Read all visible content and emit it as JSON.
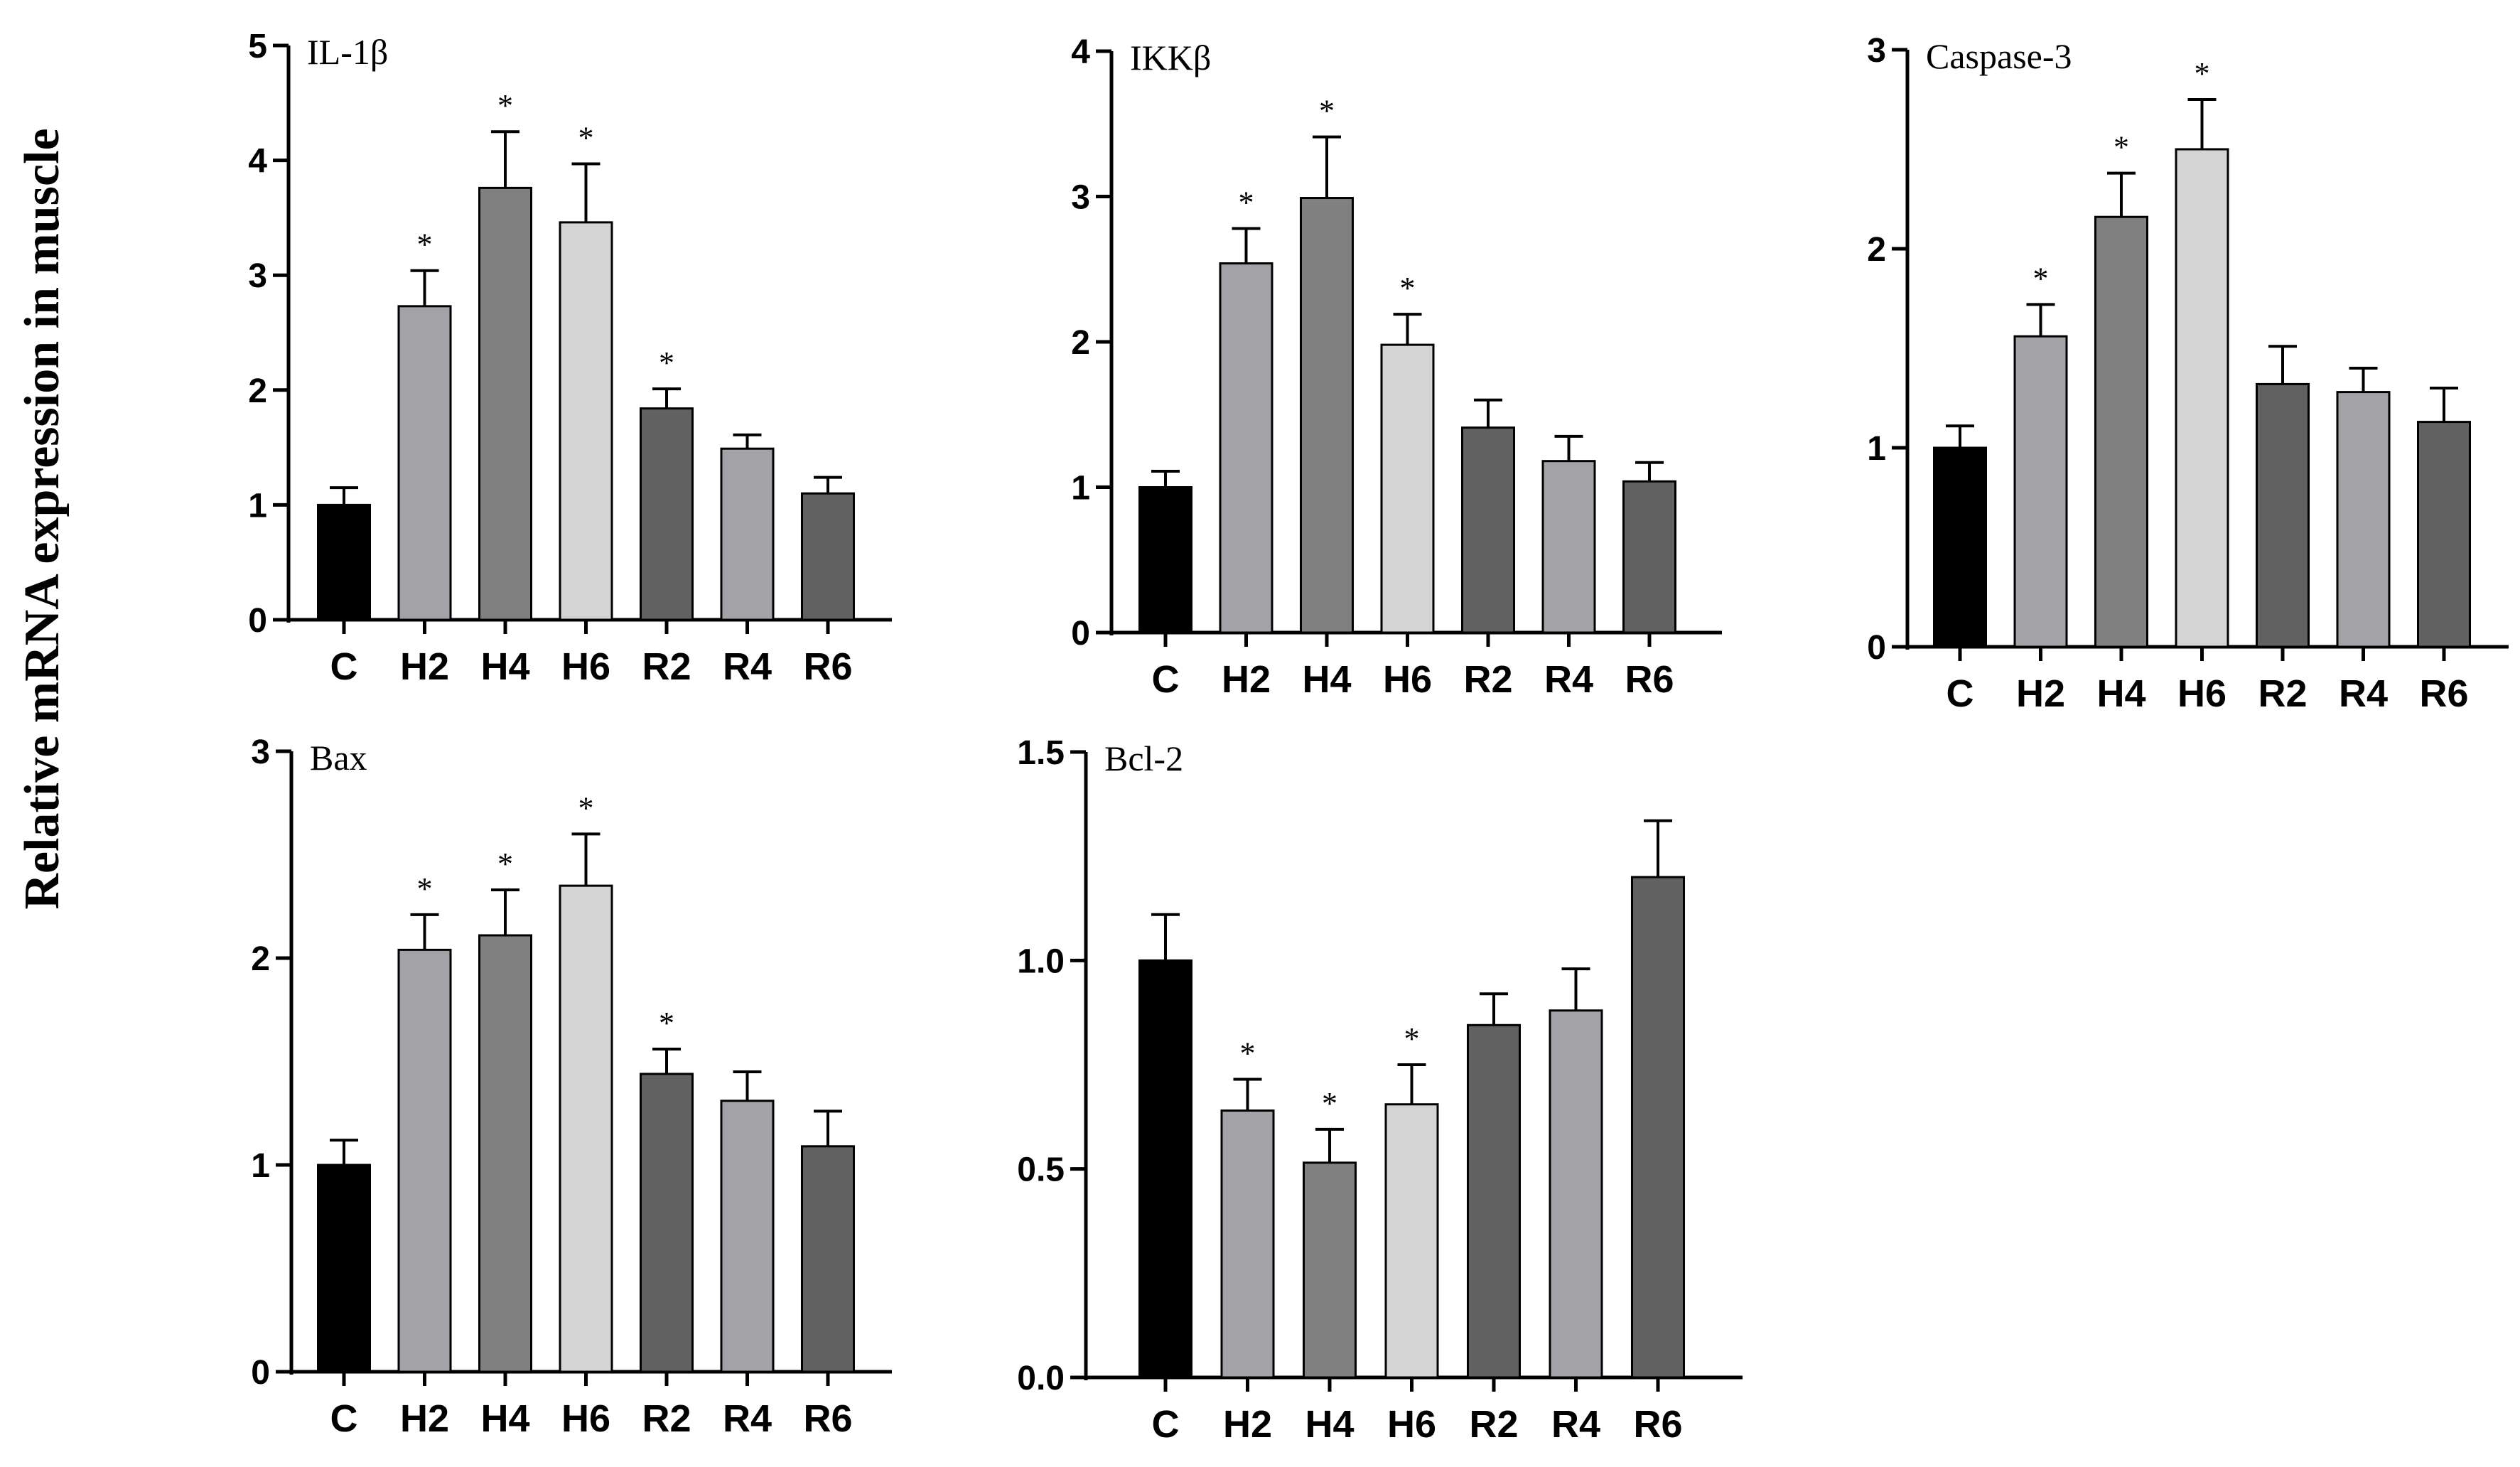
{
  "chart_data": {
    "type": "bar",
    "ylabel": "Relative mRNA expression in muscle",
    "categories": [
      "C",
      "H2",
      "H4",
      "H6",
      "R2",
      "R4",
      "R6"
    ],
    "bar_colors": [
      "#000000",
      "#a3a3a7",
      "#808080",
      "#d4d4d4",
      "#616161",
      "#a3a3a7",
      "#616161"
    ],
    "panels": [
      {
        "title": "IL-1β",
        "ylim": [
          0,
          5
        ],
        "yticks": [
          "0",
          "1",
          "2",
          "3",
          "4",
          "5"
        ],
        "ytick_values": [
          0,
          1,
          2,
          3,
          4,
          5
        ],
        "values": [
          1.0,
          2.73,
          3.76,
          3.46,
          1.84,
          1.49,
          1.1
        ],
        "errors": [
          0.15,
          0.31,
          0.49,
          0.51,
          0.17,
          0.12,
          0.14
        ],
        "significant": [
          false,
          true,
          true,
          true,
          true,
          false,
          false
        ],
        "marker": "*"
      },
      {
        "title": "IKKβ",
        "ylim": [
          0,
          4
        ],
        "yticks": [
          "0",
          "1",
          "2",
          "3",
          "4"
        ],
        "ytick_values": [
          0,
          1,
          2,
          3,
          4
        ],
        "values": [
          1.0,
          2.54,
          2.99,
          1.98,
          1.41,
          1.18,
          1.04
        ],
        "errors": [
          0.11,
          0.24,
          0.42,
          0.21,
          0.19,
          0.17,
          0.13
        ],
        "significant": [
          false,
          true,
          true,
          true,
          false,
          false,
          false
        ],
        "marker": "*"
      },
      {
        "title": "Caspase-3",
        "ylim": [
          0,
          3
        ],
        "yticks": [
          "0",
          "1",
          "2",
          "3"
        ],
        "ytick_values": [
          0,
          1,
          2,
          3
        ],
        "values": [
          1.0,
          1.56,
          2.16,
          2.5,
          1.32,
          1.28,
          1.13
        ],
        "errors": [
          0.11,
          0.16,
          0.22,
          0.25,
          0.19,
          0.12,
          0.17
        ],
        "significant": [
          false,
          true,
          true,
          true,
          false,
          false,
          false
        ],
        "marker": "*"
      },
      {
        "title": "Bax",
        "ylim": [
          0,
          3
        ],
        "yticks": [
          "0",
          "1",
          "2",
          "3"
        ],
        "ytick_values": [
          0,
          1,
          2,
          3
        ],
        "values": [
          1.0,
          2.04,
          2.11,
          2.35,
          1.44,
          1.31,
          1.09
        ],
        "errors": [
          0.12,
          0.17,
          0.22,
          0.25,
          0.12,
          0.14,
          0.17
        ],
        "significant": [
          false,
          true,
          true,
          true,
          true,
          false,
          false
        ],
        "marker": "*"
      },
      {
        "title": "Bcl-2",
        "ylim": [
          0,
          1.5
        ],
        "yticks": [
          "0.0",
          "0.5",
          "1.0",
          "1.5"
        ],
        "ytick_values": [
          0,
          0.5,
          1.0,
          1.5
        ],
        "values": [
          1.0,
          0.64,
          0.515,
          0.655,
          0.845,
          0.88,
          1.2
        ],
        "errors": [
          0.11,
          0.075,
          0.08,
          0.095,
          0.075,
          0.1,
          0.135
        ],
        "significant": [
          false,
          true,
          true,
          true,
          false,
          false,
          false
        ],
        "marker": "*"
      }
    ]
  }
}
